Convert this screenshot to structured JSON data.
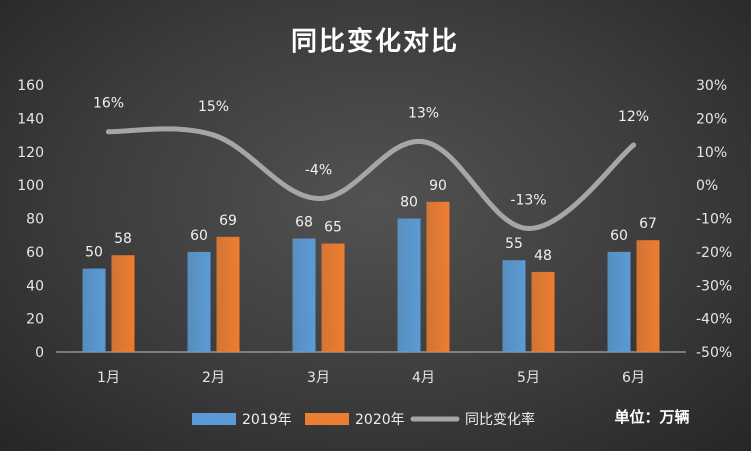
{
  "chart_data": {
    "type": "bar",
    "title": "同比变化对比",
    "unit_note": "单位：万辆",
    "categories": [
      "1月",
      "2月",
      "3月",
      "4月",
      "5月",
      "6月"
    ],
    "series": [
      {
        "name": "2019年",
        "type": "bar",
        "axis": "left",
        "color": "#5b9bd5",
        "values": [
          50,
          60,
          68,
          80,
          55,
          60
        ]
      },
      {
        "name": "2020年",
        "type": "bar",
        "axis": "left",
        "color": "#ed7d31",
        "values": [
          58,
          69,
          65,
          90,
          48,
          67
        ]
      },
      {
        "name": "同比变化率",
        "type": "line",
        "axis": "right",
        "color": "#a6a6a6",
        "values": [
          16,
          15,
          -4,
          13,
          -13,
          12
        ],
        "labels": [
          "16%",
          "15%",
          "-4%",
          "13%",
          "-13%",
          "12%"
        ]
      }
    ],
    "y_left": {
      "min": 0,
      "max": 160,
      "step": 20,
      "ticks": [
        "0",
        "20",
        "40",
        "60",
        "80",
        "100",
        "120",
        "140",
        "160"
      ]
    },
    "y_right": {
      "min": -50,
      "max": 30,
      "step": 10,
      "ticks": [
        "-50%",
        "-40%",
        "-30%",
        "-20%",
        "-10%",
        "0%",
        "10%",
        "20%",
        "30%"
      ]
    },
    "grid": false,
    "legend_position": "bottom"
  }
}
